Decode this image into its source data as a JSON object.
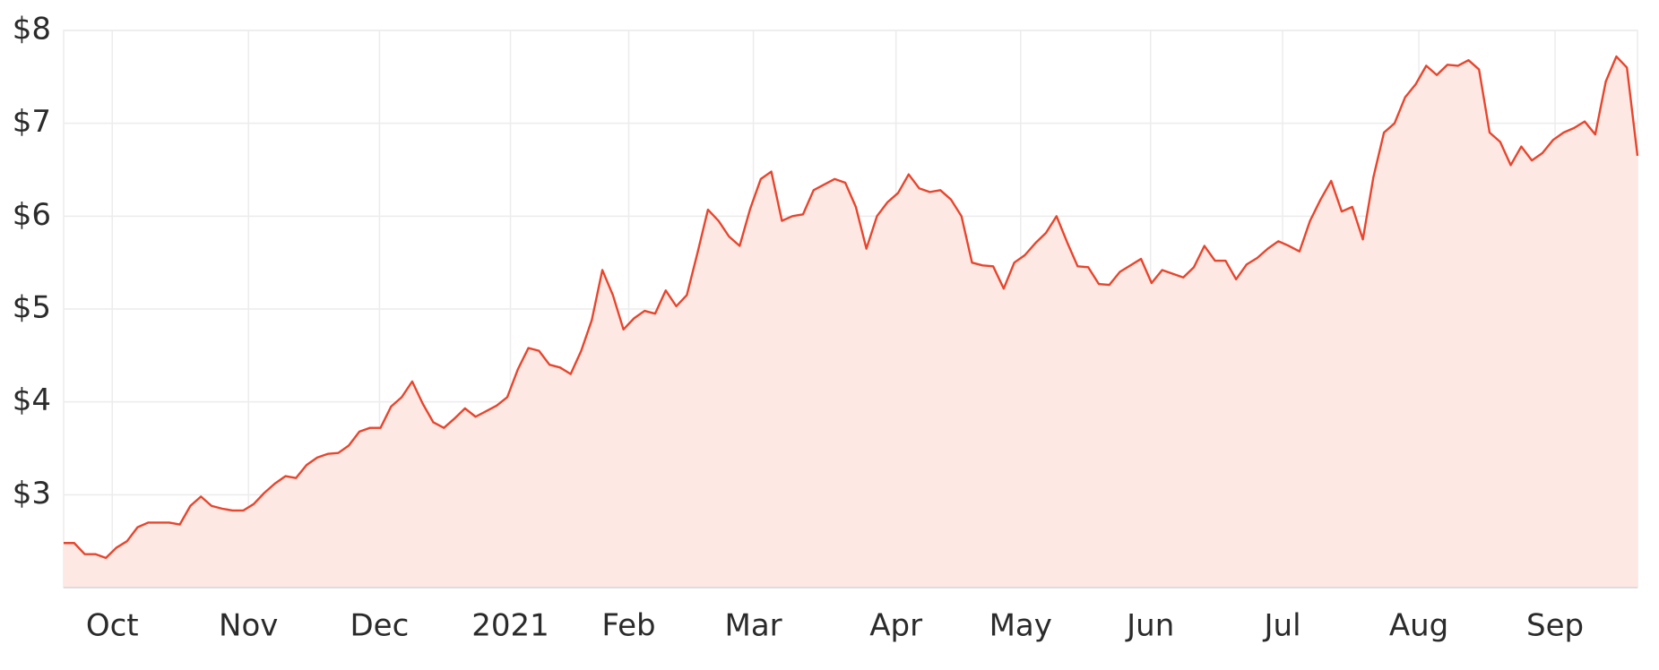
{
  "chart_data": {
    "type": "area",
    "color": "#e8452c",
    "fill_color": "#fde8e4",
    "grid": true,
    "xlim": [
      0,
      149
    ],
    "xticks": [
      {
        "value": 4.6,
        "label": "Oct"
      },
      {
        "value": 17.5,
        "label": "Nov"
      },
      {
        "value": 29.9,
        "label": "Dec"
      },
      {
        "value": 42.3,
        "label": "2021"
      },
      {
        "value": 53.5,
        "label": "Feb"
      },
      {
        "value": 65.3,
        "label": "Mar"
      },
      {
        "value": 78.8,
        "label": "Apr"
      },
      {
        "value": 90.6,
        "label": "May"
      },
      {
        "value": 102.9,
        "label": "Jun"
      },
      {
        "value": 115.4,
        "label": "Jul"
      },
      {
        "value": 128.3,
        "label": "Aug"
      },
      {
        "value": 141.2,
        "label": "Sep"
      }
    ],
    "ylim": [
      2,
      8
    ],
    "yticks": [
      {
        "value": 3,
        "label": "$3"
      },
      {
        "value": 4,
        "label": "$4"
      },
      {
        "value": 5,
        "label": "$5"
      },
      {
        "value": 6,
        "label": "$6"
      },
      {
        "value": 7,
        "label": "$7"
      },
      {
        "value": 8,
        "label": "$8"
      }
    ],
    "values": [
      2.48,
      2.48,
      2.36,
      2.36,
      2.32,
      2.43,
      2.5,
      2.65,
      2.7,
      2.7,
      2.7,
      2.68,
      2.88,
      2.98,
      2.88,
      2.85,
      2.83,
      2.83,
      2.9,
      3.02,
      3.12,
      3.2,
      3.18,
      3.32,
      3.4,
      3.44,
      3.45,
      3.53,
      3.68,
      3.72,
      3.72,
      3.95,
      4.05,
      4.22,
      3.98,
      3.78,
      3.72,
      3.82,
      3.93,
      3.84,
      3.9,
      3.96,
      4.05,
      4.35,
      4.58,
      4.55,
      4.4,
      4.37,
      4.3,
      4.55,
      4.88,
      5.42,
      5.15,
      4.78,
      4.9,
      4.98,
      4.95,
      5.2,
      5.03,
      5.15,
      5.6,
      6.07,
      5.95,
      5.78,
      5.68,
      6.08,
      6.4,
      6.48,
      5.95,
      6.0,
      6.02,
      6.28,
      6.34,
      6.4,
      6.36,
      6.1,
      5.65,
      6.0,
      6.15,
      6.25,
      6.45,
      6.3,
      6.26,
      6.28,
      6.18,
      6.0,
      5.5,
      5.47,
      5.46,
      5.22,
      5.5,
      5.58,
      5.71,
      5.82,
      6.0,
      5.72,
      5.46,
      5.45,
      5.27,
      5.26,
      5.4,
      5.47,
      5.54,
      5.28,
      5.42,
      5.38,
      5.34,
      5.45,
      5.68,
      5.52,
      5.52,
      5.32,
      5.48,
      5.55,
      5.65,
      5.73,
      5.68,
      5.62,
      5.95,
      6.18,
      6.38,
      6.05,
      6.1,
      5.75,
      6.42,
      6.9,
      7.0,
      7.28,
      7.42,
      7.62,
      7.52,
      7.63,
      7.62,
      7.68,
      7.58,
      6.9,
      6.8,
      6.55,
      6.75,
      6.6,
      6.68,
      6.82,
      6.9,
      6.95,
      7.02,
      6.88,
      7.45,
      7.72,
      7.6,
      6.65
    ]
  }
}
